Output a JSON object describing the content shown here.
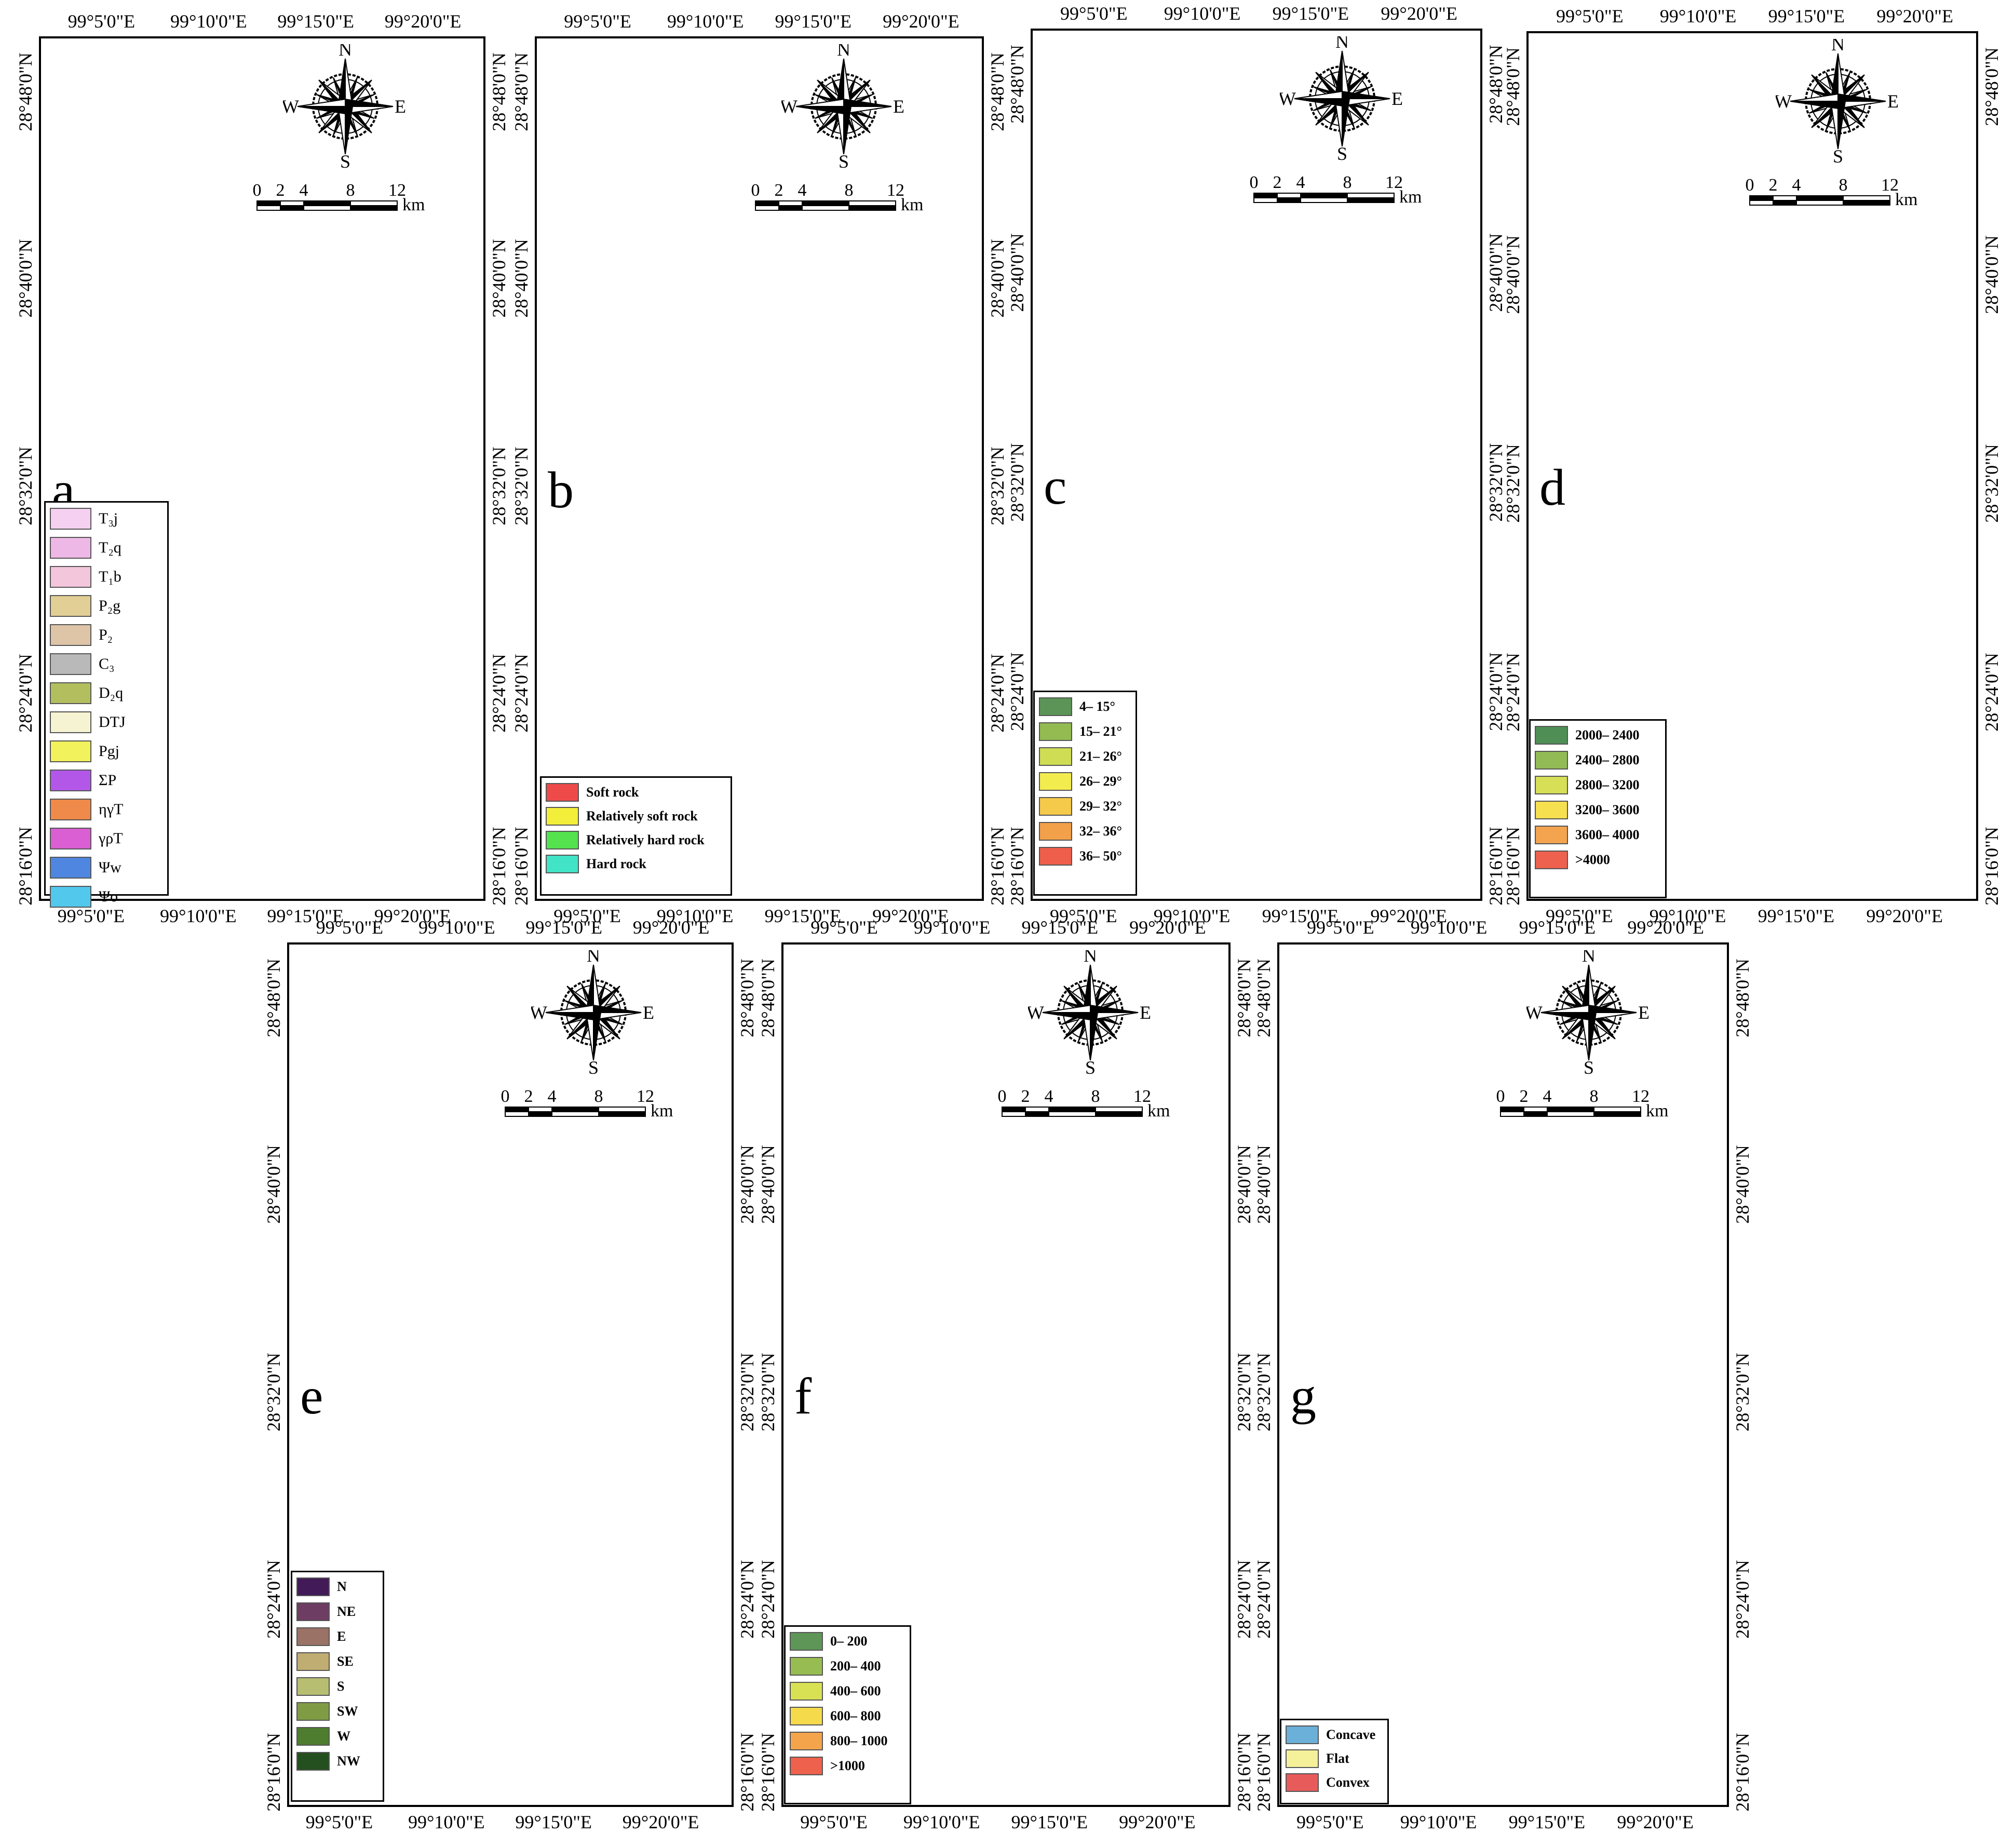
{
  "panels": [
    {
      "id": "a",
      "letter": "a",
      "top_labels": [
        "99°5'0\"E",
        "99°10'0\"E",
        "99°15'0\"E",
        "99°20'0\"E"
      ],
      "bottom_labels": [
        "99°5'0\"E",
        "99°10'0\"E",
        "99°15'0\"E",
        "99°20'0\"E"
      ],
      "side_labels": [
        "28°48'0\"N",
        "28°40'0\"N",
        "28°32'0\"N",
        "28°24'0\"N",
        "28°16'0\"N"
      ],
      "compass": {
        "n": "N",
        "s": "S",
        "e": "E",
        "w": "W"
      },
      "scale": {
        "ticks": [
          "0",
          "2",
          "4",
          "8",
          "12"
        ],
        "unit": "km"
      },
      "legend": [
        {
          "label": "T₃j",
          "color": "#f5d0f0"
        },
        {
          "label": "T₂q",
          "color": "#eeb8e6"
        },
        {
          "label": "T₁b",
          "color": "#f3c6dc"
        },
        {
          "label": "P₂g",
          "color": "#e2cf96"
        },
        {
          "label": "P₂",
          "color": "#dec5a8"
        },
        {
          "label": "C₃",
          "color": "#b9b9b9"
        },
        {
          "label": "D₂q",
          "color": "#b3bf5f"
        },
        {
          "label": "DTJ",
          "color": "#f6f3d2"
        },
        {
          "label": "Pgj",
          "color": "#f2f25c"
        },
        {
          "label": "ΣP",
          "color": "#b257e8"
        },
        {
          "label": "ηγT",
          "color": "#f08a4a"
        },
        {
          "label": "γρT",
          "color": "#d95fd2"
        },
        {
          "label": "Ψw",
          "color": "#4f86e0"
        },
        {
          "label": "Ψo",
          "color": "#52c8ec"
        }
      ]
    },
    {
      "id": "b",
      "letter": "b",
      "top_labels": [
        "99°5'0\"E",
        "99°10'0\"E",
        "99°15'0\"E",
        "99°20'0\"E"
      ],
      "bottom_labels": [
        "99°5'0\"E",
        "99°10'0\"E",
        "99°15'0\"E",
        "99°20'0\"E"
      ],
      "side_labels": [
        "28°48'0\"N",
        "28°40'0\"N",
        "28°32'0\"N",
        "28°24'0\"N",
        "28°16'0\"N"
      ],
      "compass": {
        "n": "N",
        "s": "S",
        "e": "E",
        "w": "W"
      },
      "scale": {
        "ticks": [
          "0",
          "2",
          "4",
          "8",
          "12"
        ],
        "unit": "km"
      },
      "legend": [
        {
          "label": "Soft rock",
          "color": "#ee4a4a"
        },
        {
          "label": "Relatively soft rock",
          "color": "#f2ee3a"
        },
        {
          "label": "Relatively hard rock",
          "color": "#54e24e"
        },
        {
          "label": "Hard rock",
          "color": "#42e4c8"
        }
      ]
    },
    {
      "id": "c",
      "letter": "c",
      "top_labels": [
        "99°5'0\"E",
        "99°10'0\"E",
        "99°15'0\"E",
        "99°20'0\"E"
      ],
      "bottom_labels": [
        "99°5'0\"E",
        "99°10'0\"E",
        "99°15'0\"E",
        "99°20'0\"E"
      ],
      "side_labels": [
        "28°48'0\"N",
        "28°40'0\"N",
        "28°32'0\"N",
        "28°24'0\"N",
        "28°16'0\"N"
      ],
      "compass": {
        "n": "N",
        "s": "S",
        "e": "E",
        "w": "W"
      },
      "scale": {
        "ticks": [
          "0",
          "2",
          "4",
          "8",
          "12"
        ],
        "unit": "km"
      },
      "legend": [
        {
          "label": "4– 15°",
          "color": "#5c9457"
        },
        {
          "label": "15– 21°",
          "color": "#93bb52"
        },
        {
          "label": "21– 26°",
          "color": "#cfdd55"
        },
        {
          "label": "26– 29°",
          "color": "#f3ec4f"
        },
        {
          "label": "29– 32°",
          "color": "#f5c94a"
        },
        {
          "label": "32– 36°",
          "color": "#f3a04a"
        },
        {
          "label": "36– 50°",
          "color": "#ee5e4a"
        }
      ]
    },
    {
      "id": "d",
      "letter": "d",
      "top_labels": [
        "99°5'0\"E",
        "99°10'0\"E",
        "99°15'0\"E",
        "99°20'0\"E"
      ],
      "bottom_labels": [
        "99°5'0\"E",
        "99°10'0\"E",
        "99°15'0\"E",
        "99°20'0\"E"
      ],
      "side_labels": [
        "28°48'0\"N",
        "28°40'0\"N",
        "28°32'0\"N",
        "28°24'0\"N",
        "28°16'0\"N"
      ],
      "compass": {
        "n": "N",
        "s": "S",
        "e": "E",
        "w": "W"
      },
      "scale": {
        "ticks": [
          "0",
          "2",
          "4",
          "8",
          "12"
        ],
        "unit": "km"
      },
      "legend": [
        {
          "label": "2000– 2400",
          "color": "#4f8f55"
        },
        {
          "label": "2400– 2800",
          "color": "#93bb55"
        },
        {
          "label": "2800– 3200",
          "color": "#d6df55"
        },
        {
          "label": "3200– 3600",
          "color": "#f6e04f"
        },
        {
          "label": "3600– 4000",
          "color": "#f4a44e"
        },
        {
          "label": ">4000",
          "color": "#ee614f"
        }
      ]
    },
    {
      "id": "e",
      "letter": "e",
      "top_labels": [
        "99°5'0\"E",
        "99°10'0\"E",
        "99°15'0\"E",
        "99°20'0\"E"
      ],
      "bottom_labels": [
        "99°5'0\"E",
        "99°10'0\"E",
        "99°15'0\"E",
        "99°20'0\"E"
      ],
      "side_labels": [
        "28°48'0\"N",
        "28°40'0\"N",
        "28°32'0\"N",
        "28°24'0\"N",
        "28°16'0\"N"
      ],
      "compass": {
        "n": "N",
        "s": "S",
        "e": "E",
        "w": "W"
      },
      "scale": {
        "ticks": [
          "0",
          "2",
          "4",
          "8",
          "12"
        ],
        "unit": "km"
      },
      "legend": [
        {
          "label": "N",
          "color": "#431a58"
        },
        {
          "label": "NE",
          "color": "#6e3d63"
        },
        {
          "label": "E",
          "color": "#9a7266"
        },
        {
          "label": "SE",
          "color": "#c0ad72"
        },
        {
          "label": "S",
          "color": "#b7be72"
        },
        {
          "label": "SW",
          "color": "#7f9c45"
        },
        {
          "label": "W",
          "color": "#4f7d2f"
        },
        {
          "label": "NW",
          "color": "#24501f"
        }
      ]
    },
    {
      "id": "f",
      "letter": "f",
      "top_labels": [
        "99°5'0\"E",
        "99°10'0\"E",
        "99°15'0\"E",
        "99°20'0\"E"
      ],
      "bottom_labels": [
        "99°5'0\"E",
        "99°10'0\"E",
        "99°15'0\"E",
        "99°20'0\"E"
      ],
      "side_labels": [
        "28°48'0\"N",
        "28°40'0\"N",
        "28°32'0\"N",
        "28°24'0\"N",
        "28°16'0\"N"
      ],
      "compass": {
        "n": "N",
        "s": "S",
        "e": "E",
        "w": "W"
      },
      "scale": {
        "ticks": [
          "0",
          "2",
          "4",
          "8",
          "12"
        ],
        "unit": "km"
      },
      "legend": [
        {
          "label": "0– 200",
          "color": "#5e9658"
        },
        {
          "label": "200– 400",
          "color": "#97bd52"
        },
        {
          "label": "400– 600",
          "color": "#d8e154"
        },
        {
          "label": "600– 800",
          "color": "#f5db4c"
        },
        {
          "label": "800– 1000",
          "color": "#f4a54b"
        },
        {
          "label": ">1000",
          "color": "#ee614c"
        }
      ]
    },
    {
      "id": "g",
      "letter": "g",
      "top_labels": [
        "99°5'0\"E",
        "99°10'0\"E",
        "99°15'0\"E",
        "99°20'0\"E"
      ],
      "bottom_labels": [
        "99°5'0\"E",
        "99°10'0\"E",
        "99°15'0\"E",
        "99°20'0\"E"
      ],
      "side_labels": [
        "28°48'0\"N",
        "28°40'0\"N",
        "28°32'0\"N",
        "28°24'0\"N",
        "28°16'0\"N"
      ],
      "compass": {
        "n": "N",
        "s": "S",
        "e": "E",
        "w": "W"
      },
      "scale": {
        "ticks": [
          "0",
          "2",
          "4",
          "8",
          "12"
        ],
        "unit": "km"
      },
      "legend": [
        {
          "label": "Concave",
          "color": "#6bb0d8"
        },
        {
          "label": "Flat",
          "color": "#f5f09a"
        },
        {
          "label": "Convex",
          "color": "#e85b5b"
        }
      ]
    }
  ],
  "map_colors": {
    "a": [
      "#f6f3d2",
      "#f2f25c",
      "#e2cf96",
      "#b3bf5f",
      "#eeb8e6",
      "#b9b9b9",
      "#dec5a8",
      "#b257e8"
    ],
    "b": [
      "#ee4a4a",
      "#f2ee3a",
      "#54e24e",
      "#42e4c8"
    ],
    "c": [
      "#f3ec4f",
      "#f5c94a",
      "#ee5e4a",
      "#cfdd55",
      "#93bb52",
      "#f3a04a"
    ],
    "d": [
      "#4f8f55",
      "#93bb55",
      "#d6df55",
      "#f6e04f",
      "#f4a44e",
      "#ee614f"
    ],
    "e": [
      "#c0ad72",
      "#4f7d2f",
      "#24501f",
      "#6e3d63",
      "#b7be72"
    ],
    "f": [
      "#d8e154",
      "#97bd52",
      "#5e9658",
      "#f5db4c"
    ],
    "g": [
      "#6bb0d8",
      "#f5f09a",
      "#e85b5b"
    ]
  }
}
